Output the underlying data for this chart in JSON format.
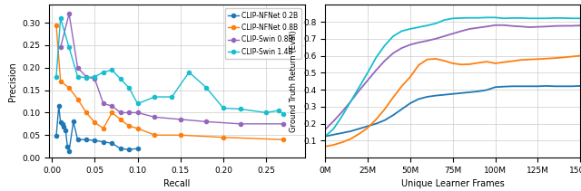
{
  "colors": {
    "blue": "#1f77b4",
    "orange": "#ff7f0e",
    "purple": "#9467bd",
    "cyan": "#17becf"
  },
  "legend_labels": [
    "CLIP-NFNet 0.2B",
    "CLIP-NFNet 0.8B",
    "CLIP-Swin 0.8B",
    "CLIP-Swin 1.4B"
  ],
  "pr_blue_recall": [
    0.005,
    0.008,
    0.01,
    0.012,
    0.014,
    0.016,
    0.018,
    0.02,
    0.025,
    0.03,
    0.04,
    0.05,
    0.06,
    0.07,
    0.08,
    0.09,
    0.1
  ],
  "pr_blue_prec": [
    0.048,
    0.115,
    0.078,
    0.075,
    0.068,
    0.06,
    0.025,
    0.015,
    0.08,
    0.04,
    0.04,
    0.038,
    0.035,
    0.032,
    0.02,
    0.018,
    0.02
  ],
  "pr_orange_recall": [
    0.005,
    0.01,
    0.02,
    0.03,
    0.04,
    0.05,
    0.06,
    0.07,
    0.08,
    0.09,
    0.1,
    0.12,
    0.15,
    0.2,
    0.27
  ],
  "pr_orange_prec": [
    0.295,
    0.17,
    0.155,
    0.13,
    0.1,
    0.078,
    0.065,
    0.1,
    0.085,
    0.07,
    0.065,
    0.05,
    0.05,
    0.045,
    0.04
  ],
  "pr_purple_recall": [
    0.01,
    0.02,
    0.03,
    0.04,
    0.05,
    0.06,
    0.07,
    0.08,
    0.09,
    0.1,
    0.12,
    0.15,
    0.18,
    0.22,
    0.27
  ],
  "pr_purple_prec": [
    0.245,
    0.32,
    0.2,
    0.18,
    0.175,
    0.12,
    0.115,
    0.1,
    0.1,
    0.1,
    0.09,
    0.085,
    0.08,
    0.075,
    0.075
  ],
  "pr_cyan_recall": [
    0.005,
    0.01,
    0.02,
    0.03,
    0.04,
    0.05,
    0.06,
    0.07,
    0.08,
    0.09,
    0.1,
    0.12,
    0.14,
    0.16,
    0.18,
    0.2,
    0.22,
    0.25,
    0.265,
    0.27
  ],
  "pr_cyan_prec": [
    0.18,
    0.31,
    0.245,
    0.18,
    0.178,
    0.18,
    0.19,
    0.195,
    0.175,
    0.155,
    0.12,
    0.135,
    0.135,
    0.19,
    0.156,
    0.11,
    0.108,
    0.1,
    0.105,
    0.097
  ],
  "frames": [
    0,
    5,
    10,
    15,
    20,
    25,
    30,
    35,
    40,
    45,
    50,
    55,
    60,
    65,
    70,
    75,
    80,
    85,
    90,
    95,
    100,
    105,
    110,
    115,
    120,
    125,
    130,
    135,
    140,
    145,
    150
  ],
  "gtr_blue": [
    0.125,
    0.135,
    0.145,
    0.155,
    0.17,
    0.185,
    0.2,
    0.22,
    0.25,
    0.285,
    0.32,
    0.345,
    0.358,
    0.365,
    0.37,
    0.375,
    0.38,
    0.385,
    0.39,
    0.398,
    0.415,
    0.418,
    0.42,
    0.42,
    0.42,
    0.42,
    0.422,
    0.42,
    0.42,
    0.42,
    0.422
  ],
  "gtr_orange": [
    0.065,
    0.075,
    0.09,
    0.11,
    0.14,
    0.175,
    0.225,
    0.285,
    0.355,
    0.42,
    0.475,
    0.545,
    0.578,
    0.582,
    0.57,
    0.555,
    0.548,
    0.55,
    0.558,
    0.565,
    0.555,
    0.562,
    0.568,
    0.575,
    0.578,
    0.58,
    0.583,
    0.586,
    0.59,
    0.595,
    0.6
  ],
  "gtr_purple": [
    0.165,
    0.215,
    0.27,
    0.33,
    0.395,
    0.455,
    0.515,
    0.57,
    0.615,
    0.645,
    0.665,
    0.678,
    0.688,
    0.7,
    0.715,
    0.73,
    0.745,
    0.758,
    0.765,
    0.772,
    0.78,
    0.78,
    0.775,
    0.772,
    0.768,
    0.77,
    0.772,
    0.775,
    0.776,
    0.776,
    0.778
  ],
  "gtr_cyan": [
    0.125,
    0.17,
    0.245,
    0.33,
    0.415,
    0.5,
    0.59,
    0.66,
    0.715,
    0.745,
    0.758,
    0.768,
    0.778,
    0.79,
    0.81,
    0.82,
    0.822,
    0.823,
    0.823,
    0.825,
    0.825,
    0.82,
    0.822,
    0.822,
    0.82,
    0.82,
    0.82,
    0.822,
    0.822,
    0.82,
    0.82
  ]
}
